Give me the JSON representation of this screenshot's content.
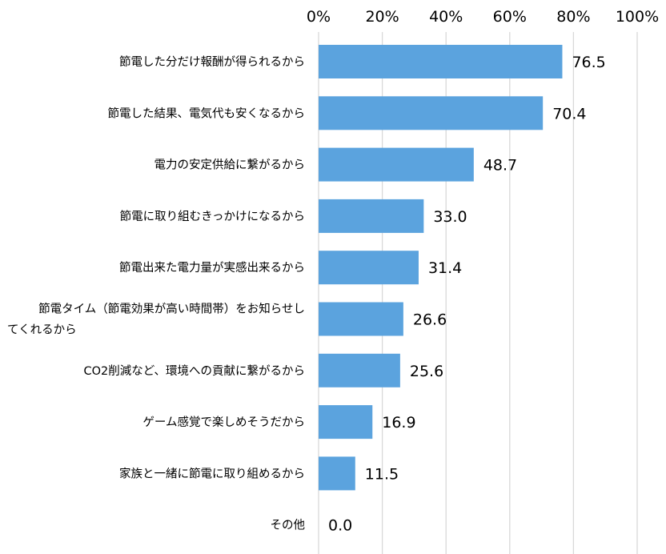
{
  "chart_data": {
    "type": "bar",
    "orientation": "horizontal",
    "categories": [
      "節電した分だけ報酬が得られるから",
      "節電した結果、電気代も安くなるから",
      "電力の安定供給に繋がるから",
      "節電に取り組むきっかけになるから",
      "節電出来た電力量が実感出来るから",
      [
        "節電タイム（節電効果が高い時間帯）をお知らせし",
        "てくれるから"
      ],
      "CO2削減など、環境への貢献に繋がるから",
      "ゲーム感覚で楽しめそうだから",
      "家族と一緒に節電に取り組めるから",
      "その他"
    ],
    "values": [
      76.5,
      70.4,
      48.7,
      33.0,
      31.4,
      26.6,
      25.6,
      16.9,
      11.5,
      0.0
    ],
    "data_labels": [
      "76.5",
      "70.4",
      "48.7",
      "33.0",
      "31.4",
      "26.6",
      "25.6",
      "16.9",
      "11.5",
      "0.0"
    ],
    "xlim": [
      0,
      100
    ],
    "x_ticks": [
      0,
      20,
      40,
      60,
      80,
      100
    ],
    "x_tick_labels": [
      "0%",
      "20%",
      "40%",
      "60%",
      "80%",
      "100%"
    ],
    "axis_position": "top",
    "grid": true,
    "legend": "none",
    "title": "",
    "xlabel": "",
    "ylabel": "",
    "colors": {
      "bar": "#5ba3de",
      "grid": "#d9d9d9",
      "text": "#000000"
    }
  }
}
